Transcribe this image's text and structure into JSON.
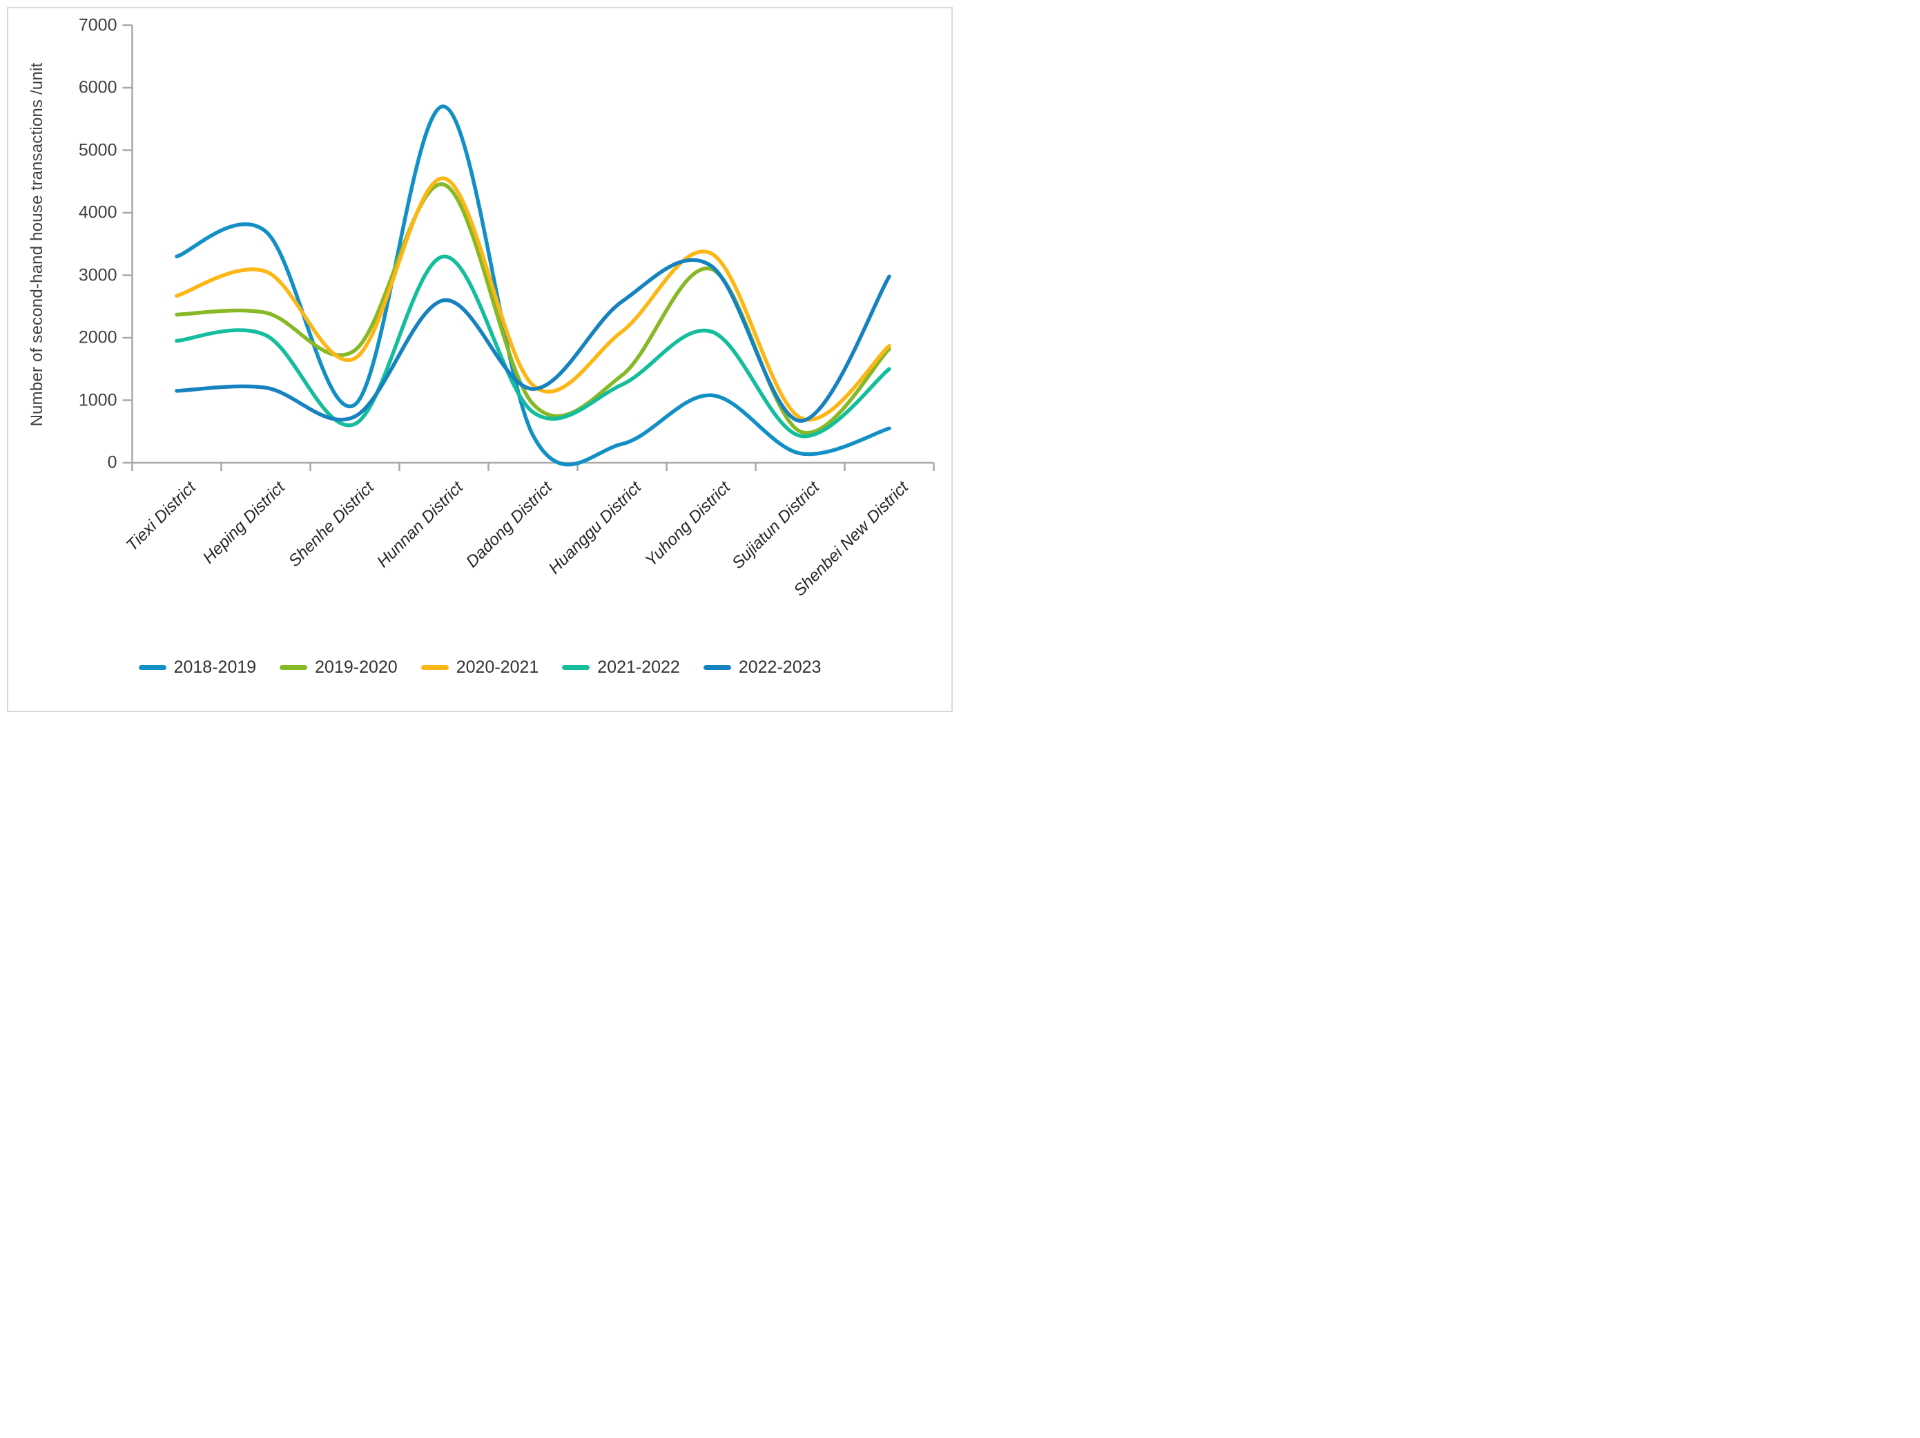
{
  "figure": {
    "background": "#ffffff",
    "border_color": "#d9d9d9"
  },
  "chart_data": {
    "type": "line",
    "title": "",
    "xlabel": "",
    "ylabel": "Number of second-hand house transactions /unit",
    "ylim": [
      0,
      7000
    ],
    "yticks": [
      0,
      1000,
      2000,
      3000,
      4000,
      5000,
      6000,
      7000
    ],
    "grid": false,
    "legend_position": "bottom",
    "line_style": "smooth",
    "axis_color": "#a8a8a8",
    "tick_label_color": "#3f3f3f",
    "category_label_color": "#262626",
    "categories": [
      "Tiexi District",
      "Heping District",
      "Shenhe District",
      "Hunnan District",
      "Dadong District",
      "Huanggu District",
      "Yuhong District",
      "Sujiatun District",
      "Shenbei New District"
    ],
    "series": [
      {
        "name": "2018-2019",
        "color": "#1290c5",
        "values": [
          3300,
          3700,
          930,
          5700,
          440,
          300,
          1080,
          150,
          550
        ]
      },
      {
        "name": "2019-2020",
        "color": "#87b825",
        "values": [
          2370,
          2400,
          1800,
          4450,
          940,
          1400,
          3100,
          500,
          1820
        ]
      },
      {
        "name": "2020-2021",
        "color": "#fdb614",
        "values": [
          2670,
          3060,
          1670,
          4550,
          1240,
          2100,
          3350,
          720,
          1870
        ]
      },
      {
        "name": "2021-2022",
        "color": "#14bd9c",
        "values": [
          1950,
          2040,
          620,
          3300,
          810,
          1250,
          2100,
          430,
          1500
        ]
      },
      {
        "name": "2022-2023",
        "color": "#1682bf",
        "values": [
          1150,
          1200,
          740,
          2600,
          1180,
          2580,
          3150,
          670,
          2980
        ]
      }
    ]
  }
}
